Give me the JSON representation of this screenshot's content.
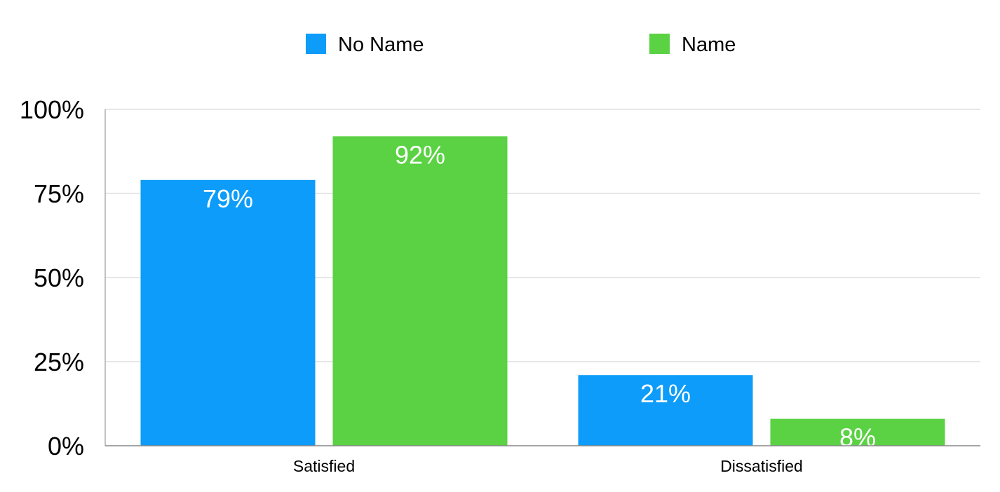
{
  "chart_data": {
    "type": "bar",
    "categories": [
      "Satisfied",
      "Dissatisfied"
    ],
    "series": [
      {
        "name": "No Name",
        "values": [
          79,
          21
        ],
        "color": "#0d9cf9"
      },
      {
        "name": "Name",
        "values": [
          92,
          8
        ],
        "color": "#5ad243"
      }
    ],
    "data_labels": [
      [
        "79%",
        "21%"
      ],
      [
        "92%",
        "8%"
      ]
    ],
    "ylim": [
      0,
      100
    ],
    "yticks": [
      0,
      25,
      50,
      75,
      100
    ],
    "ytick_labels": [
      "0%",
      "25%",
      "50%",
      "75%",
      "100%"
    ],
    "grid": true,
    "legend_position": "top-center",
    "title": "",
    "xlabel": "",
    "ylabel": ""
  },
  "colors": {
    "gridline": "#cfcfcf",
    "axis": "#888888"
  }
}
